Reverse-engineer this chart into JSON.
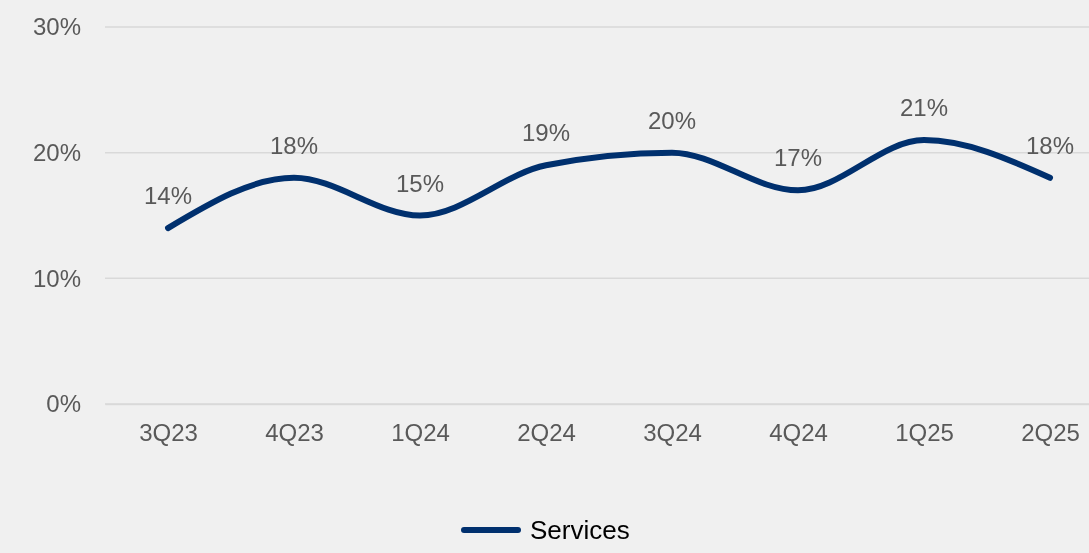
{
  "chart_data": {
    "type": "line",
    "categories": [
      "3Q23",
      "4Q23",
      "1Q24",
      "2Q24",
      "3Q24",
      "4Q24",
      "1Q25",
      "2Q25"
    ],
    "series": [
      {
        "name": "Services",
        "color": "#00306e",
        "values": [
          14,
          18,
          15,
          19,
          20,
          17,
          21,
          18
        ],
        "value_labels": [
          "14%",
          "18%",
          "15%",
          "19%",
          "20%",
          "17%",
          "21%",
          "18%"
        ]
      }
    ],
    "ylim": [
      0,
      30
    ],
    "yticks": [
      {
        "value": 0,
        "label": "0%"
      },
      {
        "value": 10,
        "label": "10%"
      },
      {
        "value": 20,
        "label": "20%"
      },
      {
        "value": 30,
        "label": "30%"
      }
    ],
    "grid": "y",
    "legend": "bottom",
    "marker": "none",
    "line_style": "solid"
  }
}
